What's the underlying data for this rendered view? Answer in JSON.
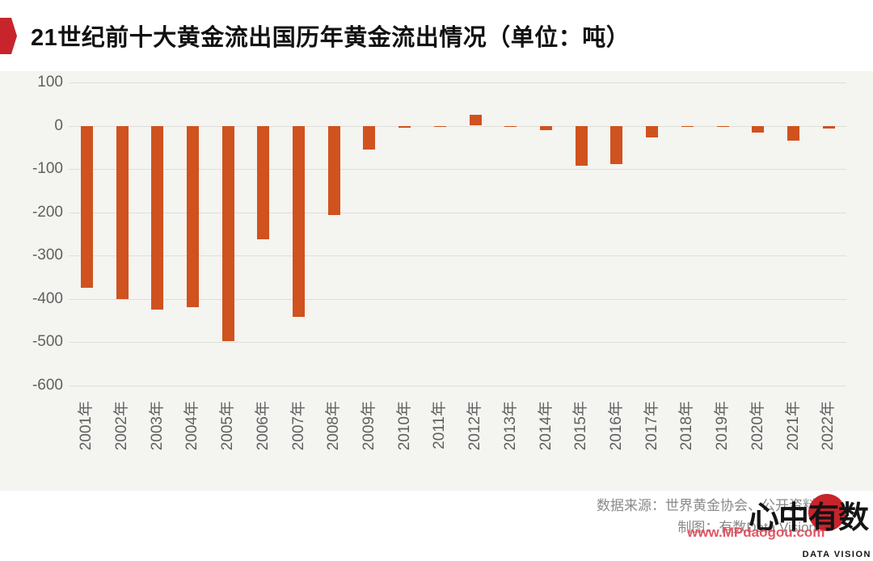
{
  "header": {
    "title": "21世纪前十大黄金流出国历年黄金流出情况（单位：吨）"
  },
  "chart_data": {
    "type": "bar",
    "title": "21世纪前十大黄金流出国历年黄金流出情况",
    "unit": "吨",
    "categories": [
      "2001年",
      "2002年",
      "2003年",
      "2004年",
      "2005年",
      "2006年",
      "2007年",
      "2008年",
      "2009年",
      "2010年",
      "2011年",
      "2012年",
      "2013年",
      "2014年",
      "2015年",
      "2016年",
      "2017年",
      "2018年",
      "2019年",
      "2020年",
      "2021年",
      "2022年"
    ],
    "values": [
      -375,
      -400,
      -425,
      -420,
      -497,
      -263,
      -441,
      -207,
      -55,
      -5,
      -3,
      25,
      -2,
      -10,
      -92,
      -88,
      -28,
      -3,
      -3,
      -15,
      -35,
      -7
    ],
    "xlabel": "",
    "ylabel": "",
    "ylim": [
      -600,
      100
    ],
    "yticks": [
      100,
      0,
      -100,
      -200,
      -300,
      -400,
      -500,
      -600
    ],
    "grid": true,
    "legend": "none",
    "bar_color": "#D0521E"
  },
  "footer": {
    "source_line": "数据来源：世界黄金协会、公开资料",
    "credit_line": "制图：有数Data Vision"
  },
  "logo": {
    "cjk_text": "心中有数",
    "subtext": "DATA VISION",
    "watermark": "www.MPdaogou.com"
  },
  "colors": {
    "accent_red": "#C8242B",
    "bar_orange": "#D0521E",
    "panel_bg": "#F4F4F1",
    "gridline": "#DEDEDA",
    "axis_text": "#606060",
    "footer_text": "#8A8A8A",
    "watermark_red": "#E04556"
  }
}
